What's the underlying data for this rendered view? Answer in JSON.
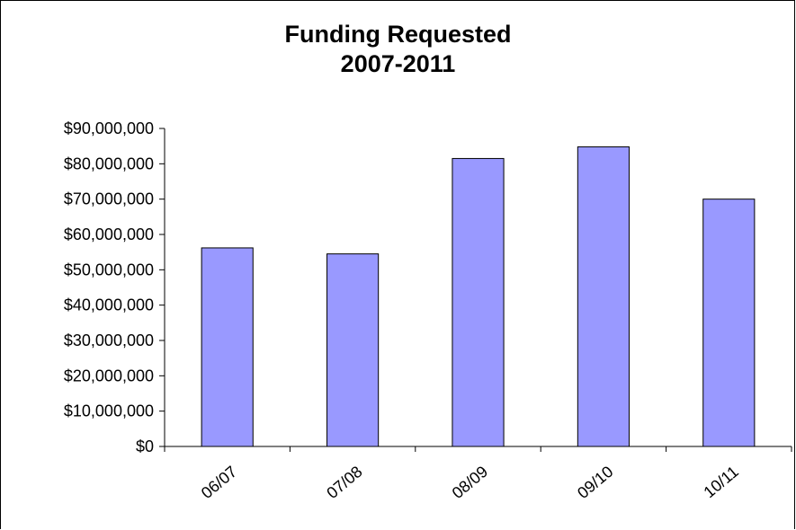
{
  "chart_data": {
    "type": "bar",
    "title": "Funding Requested",
    "subtitle": "2007-2011",
    "categories": [
      "06/07",
      "07/08",
      "08/09",
      "09/10",
      "10/11"
    ],
    "values": [
      56200000,
      54500000,
      81500000,
      84800000,
      70000000
    ],
    "y_tick_labels": [
      "$0",
      "$10,000,000",
      "$20,000,000",
      "$30,000,000",
      "$40,000,000",
      "$50,000,000",
      "$60,000,000",
      "$70,000,000",
      "$80,000,000",
      "$90,000,000"
    ],
    "ylim": [
      0,
      90000000
    ],
    "y_step": 10000000,
    "xlabel": "",
    "ylabel": "",
    "grid": false,
    "legend": "none",
    "bar_color": "#9999ff",
    "bar_border": "#000000"
  }
}
